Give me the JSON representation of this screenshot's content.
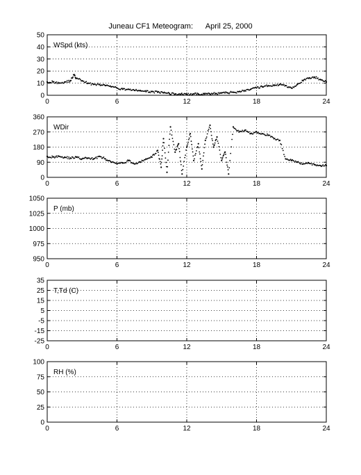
{
  "title": "Juneau CF1 Meteogram:      April 25, 2000",
  "chart_data": [
    {
      "type": "scatter",
      "label": "WSpd (kts)",
      "xlim": [
        0,
        24
      ],
      "ylim": [
        0,
        50
      ],
      "xticks": [
        0,
        6,
        12,
        18,
        24
      ],
      "yticks": [
        0,
        10,
        20,
        30,
        40,
        50
      ],
      "grid": true,
      "series": [
        {
          "x": [
            0,
            0.5,
            1,
            1.5,
            2,
            2.3,
            2.5,
            3,
            3.5,
            4,
            4.5,
            5,
            5.5,
            6,
            6.5,
            7,
            7.5,
            8,
            8.5,
            9,
            9.5,
            10,
            10.5,
            11,
            11.5,
            12,
            12.5,
            13,
            13.5,
            14,
            14.5,
            15,
            15.5,
            16,
            16.5,
            17,
            17.5,
            18,
            18.5,
            19,
            19.5,
            20,
            20.5,
            21,
            21.5,
            22,
            22.5,
            23,
            23.5,
            24
          ],
          "y": [
            11,
            11,
            10,
            11,
            12,
            17,
            14,
            12,
            10,
            9,
            9,
            8,
            7,
            6,
            5,
            5,
            4,
            4,
            3,
            3,
            2.5,
            2,
            1.5,
            1,
            1,
            0.8,
            0.8,
            1,
            1,
            1,
            1.5,
            2,
            2,
            2.5,
            3,
            4,
            5,
            6,
            7,
            8,
            8,
            9,
            8,
            6,
            9,
            12,
            14,
            15,
            13,
            11
          ]
        }
      ]
    },
    {
      "type": "scatter",
      "label": "WDir",
      "xlim": [
        0,
        24
      ],
      "ylim": [
        0,
        360
      ],
      "xticks": [
        0,
        6,
        12,
        18,
        24
      ],
      "yticks": [
        0,
        90,
        180,
        270,
        360
      ],
      "grid": true,
      "series": [
        {
          "x": [
            0,
            0.5,
            1,
            1.5,
            2,
            2.5,
            3,
            3.5,
            4,
            4.5,
            5,
            5.5,
            6,
            6.5,
            7,
            7.5,
            8,
            8.5,
            9,
            9.5,
            9.8,
            10,
            10.3,
            10.6,
            11,
            11.3,
            11.6,
            12,
            12.3,
            12.6,
            13,
            13.3,
            13.6,
            14,
            14.3,
            14.6,
            15,
            15.3,
            15.6,
            16,
            16.5,
            17,
            17.5,
            18,
            18.5,
            19,
            19.5,
            20,
            20.5,
            21,
            21.5,
            22,
            22.5,
            23,
            23.5,
            24
          ],
          "y": [
            125,
            120,
            125,
            120,
            115,
            120,
            110,
            115,
            110,
            125,
            110,
            90,
            80,
            85,
            100,
            80,
            90,
            110,
            120,
            160,
            60,
            230,
            30,
            300,
            150,
            200,
            20,
            180,
            260,
            100,
            200,
            50,
            220,
            310,
            180,
            240,
            100,
            150,
            20,
            300,
            270,
            280,
            260,
            270,
            260,
            250,
            230,
            220,
            110,
            100,
            90,
            80,
            85,
            75,
            70,
            70
          ]
        }
      ]
    },
    {
      "type": "scatter",
      "label": "P (mb)",
      "xlim": [
        0,
        24
      ],
      "ylim": [
        950,
        1050
      ],
      "xticks": [
        0,
        6,
        12,
        18,
        24
      ],
      "yticks": [
        950,
        975,
        1000,
        1025,
        1050
      ],
      "grid": true,
      "series": []
    },
    {
      "type": "scatter",
      "label": "T,Td (C)",
      "xlim": [
        0,
        24
      ],
      "ylim": [
        -25,
        35
      ],
      "xticks": [
        0,
        6,
        12,
        18,
        24
      ],
      "yticks": [
        -25,
        -15,
        -5,
        5,
        15,
        25,
        35
      ],
      "grid": true,
      "series": []
    },
    {
      "type": "scatter",
      "label": "RH (%)",
      "xlim": [
        0,
        24
      ],
      "ylim": [
        0,
        100
      ],
      "xticks": [
        0,
        6,
        12,
        18,
        24
      ],
      "yticks": [
        0,
        25,
        50,
        75,
        100
      ],
      "grid": true,
      "series": []
    }
  ]
}
